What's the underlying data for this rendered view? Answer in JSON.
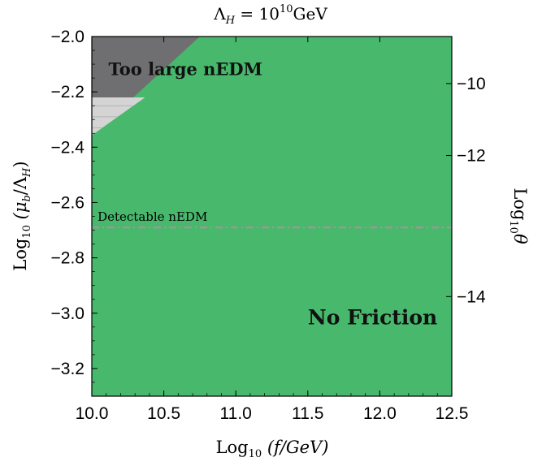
{
  "chart_data": {
    "type": "area",
    "title": "Λ_H = 10^10 GeV",
    "title_parts": {
      "lambda": "Λ",
      "sub": "H",
      "eq": " = 10",
      "sup": "10",
      "unit": "GeV"
    },
    "xlabel_parts": {
      "log": "Log",
      "sub": "10",
      "body": "(f/GeV)"
    },
    "ylabel_parts": {
      "log": "Log",
      "sub": "10",
      "open": "(μ",
      "sub_b": "b",
      "mid": "/Λ",
      "sub_h": "H",
      "close": ")"
    },
    "y2label_parts": {
      "log": "Log",
      "sub": "10",
      "theta": "θ"
    },
    "xlim": [
      10.0,
      12.5
    ],
    "ylim": [
      -3.3,
      -2.0
    ],
    "xticks": [
      10.0,
      10.5,
      11.0,
      11.5,
      12.0,
      12.5
    ],
    "xtick_labels": [
      "10.0",
      "10.5",
      "11.0",
      "11.5",
      "12.0",
      "12.5"
    ],
    "yticks": [
      -2.0,
      -2.2,
      -2.4,
      -2.6,
      -2.8,
      -3.0,
      -3.2
    ],
    "ytick_labels": [
      "−2.0",
      "−2.2",
      "−2.4",
      "−2.6",
      "−2.8",
      "−3.0",
      "−3.2"
    ],
    "y2ticks": [
      {
        "label": "−10",
        "y_left": -2.17
      },
      {
        "label": "−12",
        "y_left": -2.43
      },
      {
        "label": "−14",
        "y_left": -2.94
      }
    ],
    "regions": [
      {
        "name": "no-friction",
        "label": "No Friction",
        "color": "#47b86c",
        "label_at": [
          11.95,
          -3.04
        ]
      },
      {
        "name": "too-large-nedm",
        "label": "Too large nEDM",
        "color": "#6f6f71",
        "label_at": [
          10.65,
          -2.14
        ],
        "boundary": [
          [
            10.0,
            -2.357
          ],
          [
            10.75,
            -2.0
          ]
        ]
      },
      {
        "name": "excluded-light",
        "label": "",
        "color": "#d4d4d4",
        "boundary": [
          [
            10.0,
            -2.357
          ],
          [
            10.37,
            -2.22
          ]
        ]
      }
    ],
    "lines": [
      {
        "name": "detectable-nedm",
        "label": "Detectable nEDM",
        "y": -2.69,
        "style": "dash-dot",
        "color": "#a9929b"
      }
    ],
    "colors": {
      "green": "#47b86c",
      "dark_gray": "#6f6f71",
      "light_gray": "#d4d4d4",
      "dashdot": "#a9929b"
    }
  }
}
